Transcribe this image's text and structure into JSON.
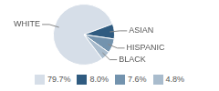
{
  "chart_data": {
    "type": "pie",
    "categories": [
      "WHITE",
      "ASIAN",
      "HISPANIC",
      "BLACK"
    ],
    "values": [
      79.7,
      8.0,
      7.6,
      4.8
    ],
    "value_labels": [
      "79.7%",
      "8.0%",
      "7.6%",
      "4.8%"
    ],
    "colors": [
      "#d6dee8",
      "#2f5b80",
      "#7393ae",
      "#a9bccd"
    ],
    "legend": "bottom"
  }
}
